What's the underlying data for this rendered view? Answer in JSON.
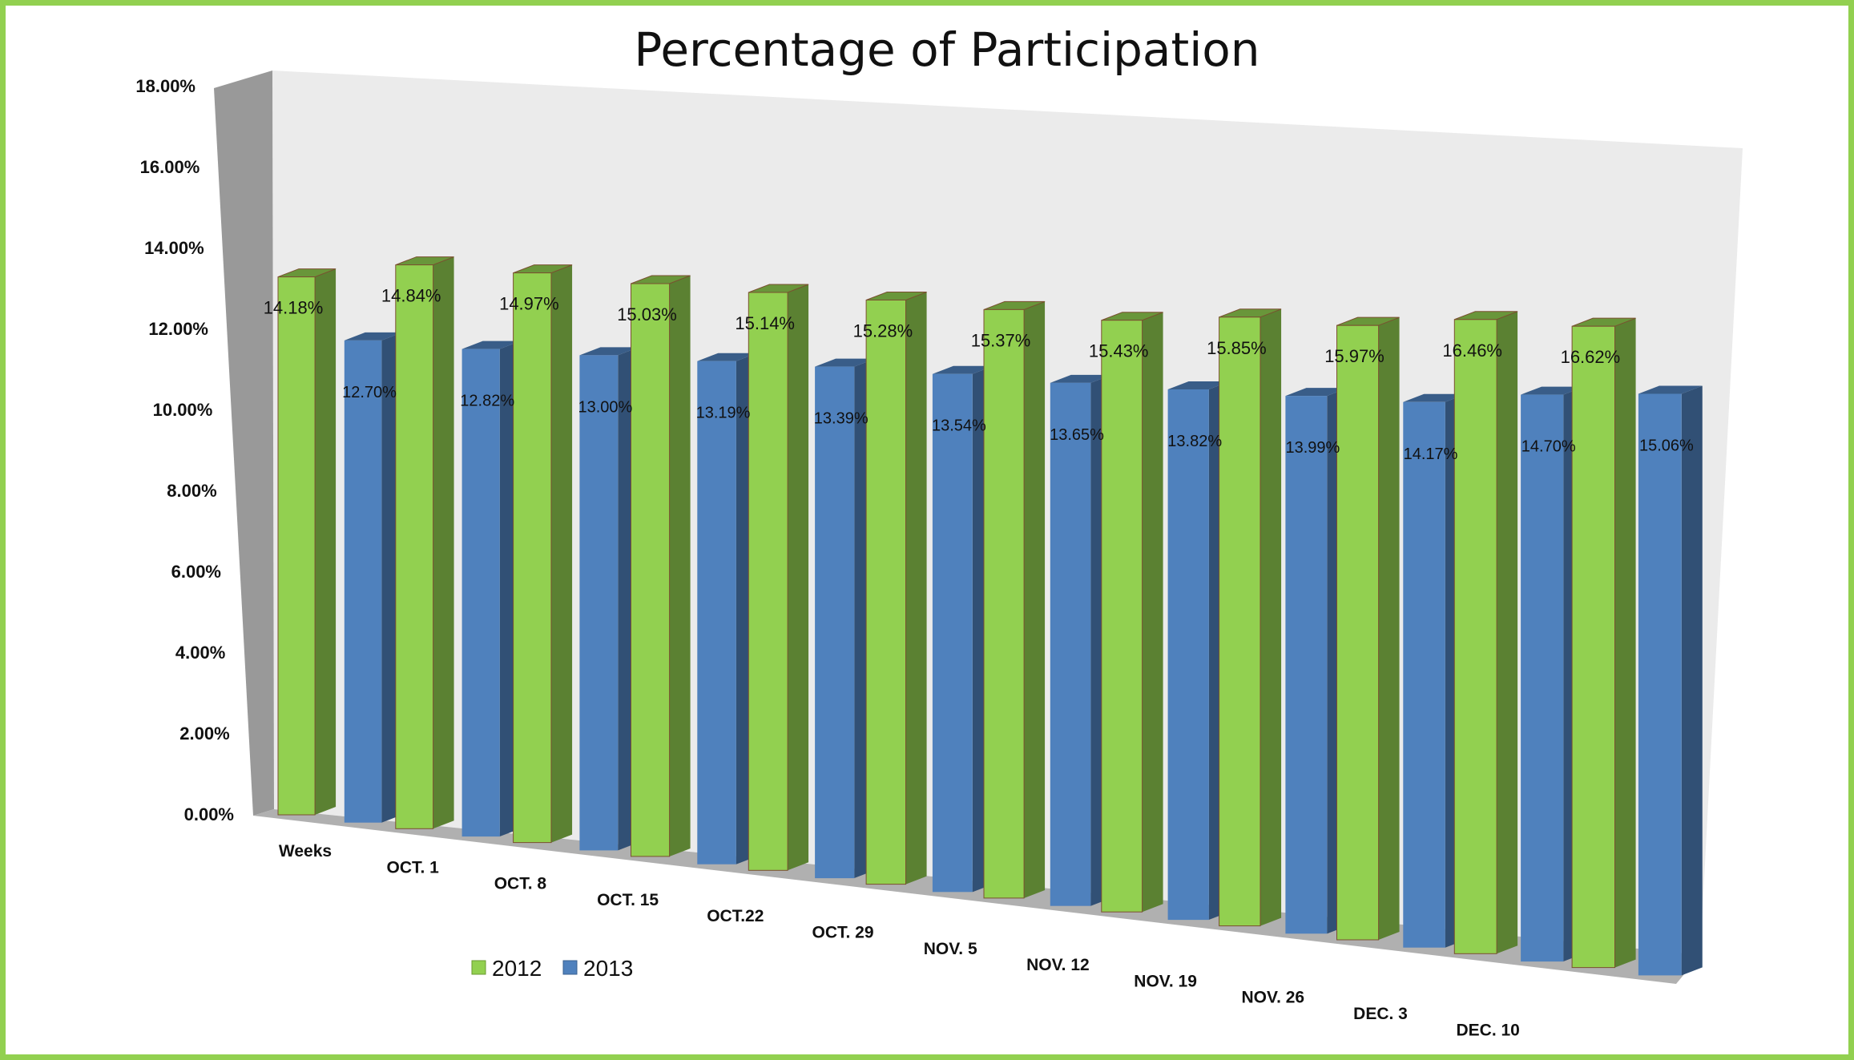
{
  "chart_data": {
    "type": "bar",
    "title": "Percentage of Participation",
    "xlabel": "",
    "ylabel": "",
    "ylim": [
      0,
      18
    ],
    "yticks": [
      "0.00%",
      "2.00%",
      "4.00%",
      "6.00%",
      "8.00%",
      "10.00%",
      "12.00%",
      "14.00%",
      "16.00%",
      "18.00%"
    ],
    "categories": [
      "Weeks",
      "OCT. 1",
      "OCT. 8",
      "OCT. 15",
      "OCT.22",
      "OCT. 29",
      "NOV. 5",
      "NOV. 12",
      "NOV. 19",
      "NOV. 26",
      "DEC. 3",
      "DEC. 10"
    ],
    "series": [
      {
        "name": "2012",
        "color": "#92D050",
        "values": [
          14.18,
          14.84,
          14.97,
          15.03,
          15.14,
          15.28,
          15.37,
          15.43,
          15.85,
          15.97,
          16.46,
          16.62
        ],
        "labels": [
          "14.18%",
          "14.84%",
          "14.97%",
          "15.03%",
          "15.14%",
          "15.28%",
          "15.37%",
          "15.43%",
          "15.85%",
          "15.97%",
          "16.46%",
          "16.62%"
        ]
      },
      {
        "name": "2013",
        "color": "#4F81BD",
        "values": [
          12.7,
          12.82,
          13.0,
          13.19,
          13.39,
          13.54,
          13.65,
          13.82,
          13.99,
          14.17,
          14.7,
          15.06
        ],
        "labels": [
          "12.70%",
          "12.82%",
          "13.00%",
          "13.19%",
          "13.39%",
          "13.54%",
          "13.65%",
          "13.82%",
          "13.99%",
          "14.17%",
          "14.70%",
          "15.06%"
        ]
      }
    ],
    "legend": "bottom-left",
    "grid": false,
    "style": "3d-clustered-column",
    "frame_color": "#92D050"
  }
}
